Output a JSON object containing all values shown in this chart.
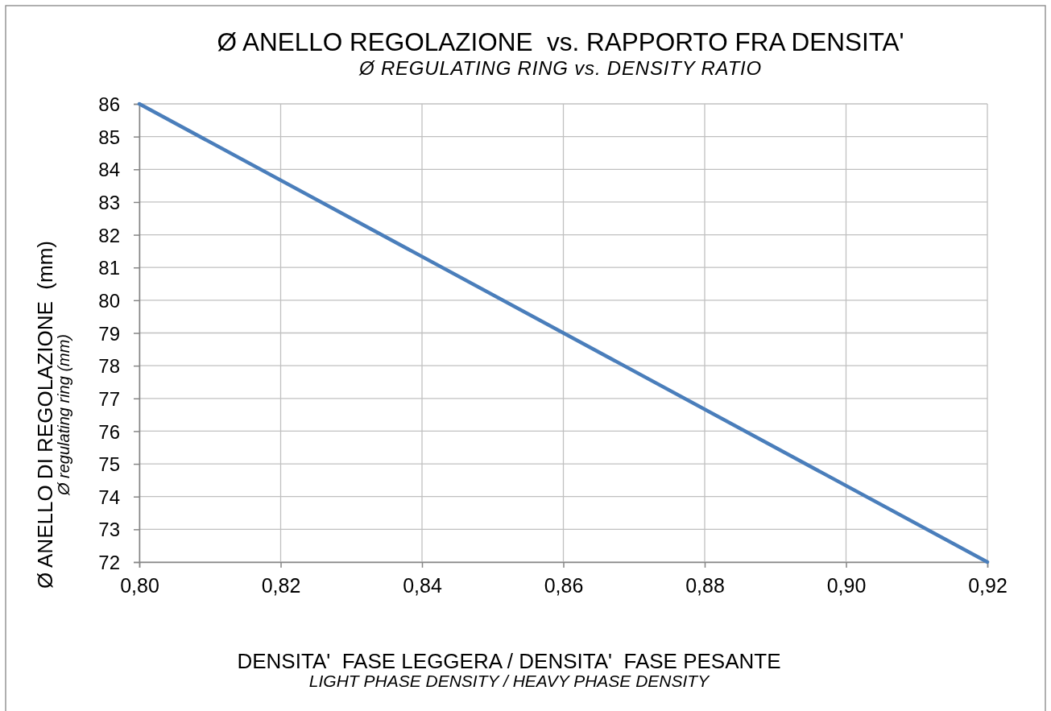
{
  "chart_data": {
    "type": "line",
    "title": "Ø ANELLO REGOLAZIONE  vs. RAPPORTO FRA DENSITA'",
    "subtitle": "Ø REGULATING RING vs. DENSITY RATIO",
    "xlabel": "DENSITA'  FASE LEGGERA / DENSITA'  FASE PESANTE\nLIGHT PHASE DENSITY / HEAVY PHASE DENSITY",
    "ylabel": "Ø ANELLO DI REGOLAZIONE  (mm)\nØ regulating ring (mm)",
    "x": [
      0.8,
      0.92
    ],
    "series": [
      {
        "color": "#4a7ebb",
        "values": [
          86,
          72
        ]
      }
    ],
    "xlim": [
      0.8,
      0.92
    ],
    "xticks": [
      {
        "value": 0.8,
        "label": "0,80"
      },
      {
        "value": 0.82,
        "label": "0,82"
      },
      {
        "value": 0.84,
        "label": "0,84"
      },
      {
        "value": 0.86,
        "label": "0,86"
      },
      {
        "value": 0.88,
        "label": "0,88"
      },
      {
        "value": 0.9,
        "label": "0,90"
      },
      {
        "value": 0.92,
        "label": "0,92"
      }
    ],
    "ylim": [
      72,
      86
    ],
    "yticks": [
      72,
      73,
      74,
      75,
      76,
      77,
      78,
      79,
      80,
      81,
      82,
      83,
      84,
      85,
      86
    ],
    "grid": true,
    "marker": "none",
    "line_style": "solid"
  }
}
